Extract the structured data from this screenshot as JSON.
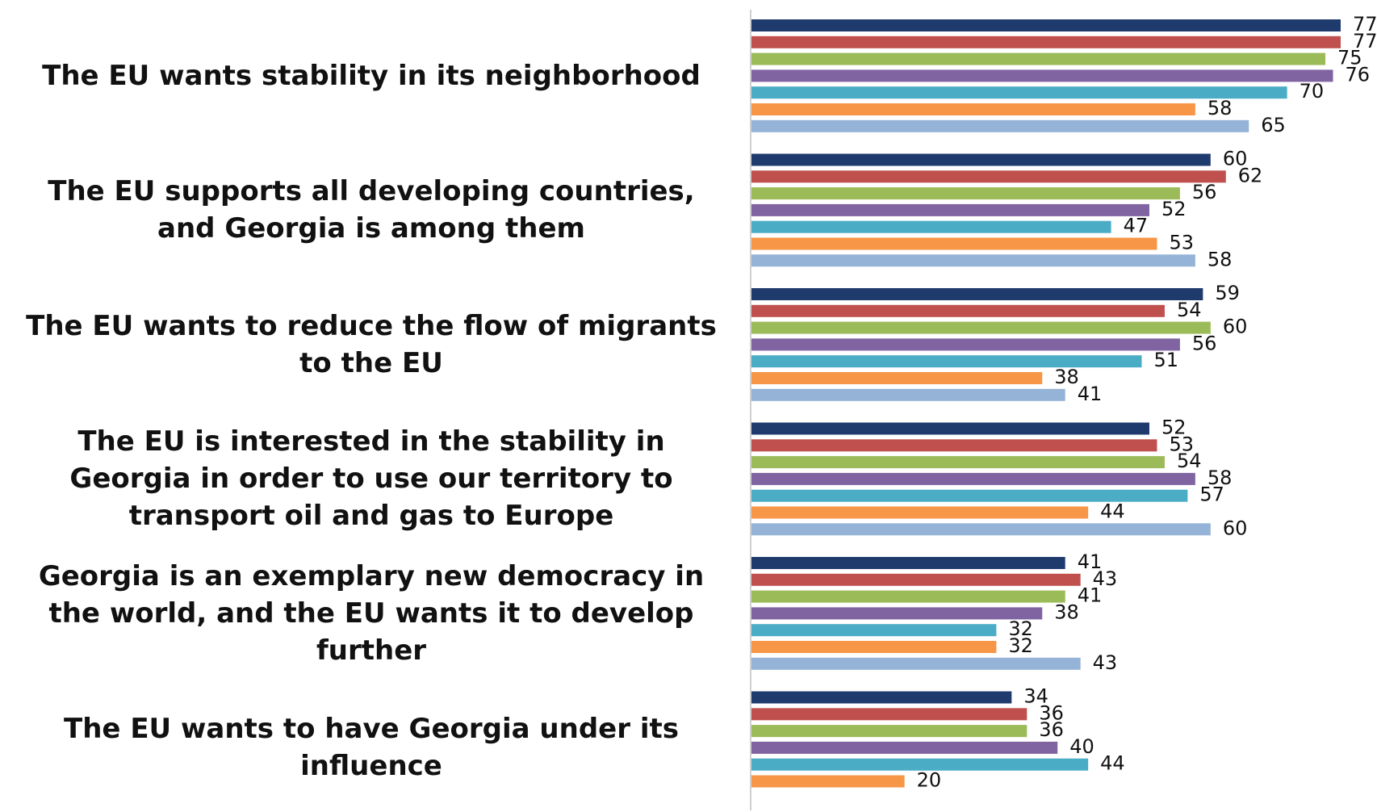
{
  "chart_data": {
    "type": "bar",
    "orientation": "horizontal",
    "categories": [
      "The EU wants stability in its neighborhood",
      "The EU supports all developing countries, and Georgia is among them",
      "The EU wants to reduce the flow of migrants to the EU",
      "The EU is interested in the stability in Georgia in order to use our territory to transport oil and gas to Europe",
      "Georgia is an exemplary new democracy in the world, and the EU wants it to develop further",
      "The EU wants to have Georgia under its influence"
    ],
    "series": [
      {
        "color": "#1f3b6e",
        "values": [
          77,
          60,
          59,
          52,
          41,
          34
        ]
      },
      {
        "color": "#c0504d",
        "values": [
          77,
          62,
          54,
          53,
          43,
          36
        ]
      },
      {
        "color": "#9bbb59",
        "values": [
          75,
          56,
          60,
          54,
          41,
          36
        ]
      },
      {
        "color": "#8064a2",
        "values": [
          76,
          52,
          56,
          58,
          38,
          40
        ]
      },
      {
        "color": "#4bacc6",
        "values": [
          70,
          47,
          51,
          57,
          32,
          44
        ]
      },
      {
        "color": "#f79646",
        "values": [
          58,
          53,
          38,
          44,
          32,
          20
        ]
      },
      {
        "color": "#95b3d7",
        "values": [
          65,
          58,
          41,
          60,
          43,
          null
        ]
      }
    ],
    "xlim": [
      0,
      77
    ],
    "grid": false,
    "legend": "none",
    "data_labels": true
  }
}
